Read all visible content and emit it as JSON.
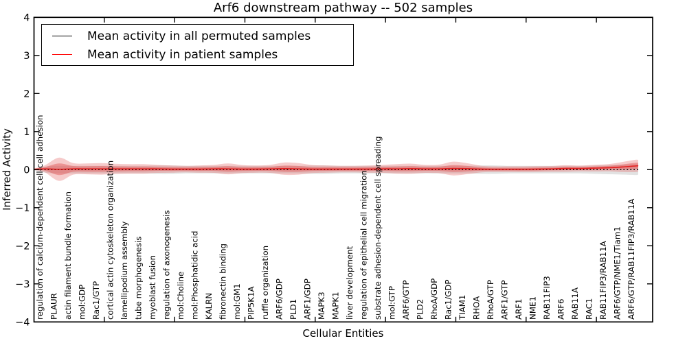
{
  "title": "Arf6 downstream pathway -- 502 samples",
  "axes": {
    "x_label": "Cellular Entities",
    "y_label": "Inferred Activity",
    "y_ticks": [
      "4",
      "3",
      "2",
      "1",
      "0",
      "−1",
      "−2",
      "−3",
      "−4"
    ],
    "y_min": -4,
    "y_max": 4
  },
  "legend": {
    "items": [
      {
        "label": "Mean activity in all permuted samples",
        "color": "#000000"
      },
      {
        "label": "Mean activity in patient samples",
        "color": "#ff0000"
      }
    ]
  },
  "chart_data": {
    "type": "line",
    "title": "Arf6 downstream pathway -- 502 samples",
    "xlabel": "Cellular Entities",
    "ylabel": "Inferred Activity",
    "ylim": [
      -4,
      4
    ],
    "grid": false,
    "legend_position": "upper left",
    "x_major_ticks": [
      5,
      10,
      15,
      20,
      25,
      30,
      35,
      40
    ],
    "categories": [
      "regulation of calcium-dependent cell-cell adhesion",
      "PLAUR",
      "actin filament bundle formation",
      "mol:GDP",
      "Rac1/GTP",
      "cortical actin cytoskeleton organization",
      "lamellipodium assembly",
      "tube morphogenesis",
      "myoblast fusion",
      "regulation of axonogenesis",
      "mol:Choline",
      "mol:Phosphatidic acid",
      "KALRN",
      "fibronectin binding",
      "mol:GM1",
      "PIP5K1A",
      "ruffle organization",
      "ARF6/GDP",
      "PLD1",
      "ARF1/GDP",
      "MAPK3",
      "MAPK1",
      "liver development",
      "regulation of epithelial cell migration",
      "substrate adhesion-dependent cell spreading",
      "mol:GTP",
      "ARF6/GTP",
      "PLD2",
      "RhoA/GDP",
      "Rac1/GDP",
      "TIAM1",
      "RHOA",
      "RhoA/GTP",
      "ARF1/GTP",
      "ARF1",
      "NME1",
      "RAB11FIP3",
      "ARF6",
      "RAB11A",
      "RAC1",
      "RAB11FIP3/RAB11A",
      "ARF6/GTP/NME1/Tiam1",
      "ARF6/GTP/RAB11FIP3/RAB11A"
    ],
    "series": [
      {
        "name": "Mean activity in all permuted samples",
        "color": "#000000",
        "line_style": "dotted",
        "band_color": "#969696",
        "mean": [
          0,
          0,
          0,
          0,
          0,
          0,
          0,
          0,
          0,
          0,
          0,
          0,
          0,
          0,
          0,
          0,
          0,
          0,
          0,
          0,
          0,
          0,
          0,
          0,
          0,
          0,
          0,
          0,
          0,
          0,
          0,
          0,
          0,
          0,
          0,
          0,
          0,
          0,
          0,
          0,
          0,
          0,
          0
        ],
        "std": [
          0.04,
          0.05,
          0.05,
          0.05,
          0.05,
          0.05,
          0.05,
          0.05,
          0.055,
          0.055,
          0.05,
          0.05,
          0.05,
          0.05,
          0.05,
          0.05,
          0.05,
          0.05,
          0.05,
          0.055,
          0.055,
          0.05,
          0.05,
          0.05,
          0.05,
          0.05,
          0.05,
          0.05,
          0.05,
          0.05,
          0.05,
          0.055,
          0.055,
          0.05,
          0.05,
          0.05,
          0.05,
          0.05,
          0.05,
          0.055,
          0.06,
          0.065,
          0.07
        ]
      },
      {
        "name": "Mean activity in patient samples",
        "color": "#e42222",
        "line_style": "solid",
        "band_color": "#e05252",
        "mean": [
          0.02,
          0.01,
          0.02,
          0.02,
          0.02,
          0.02,
          0.02,
          0.02,
          0.02,
          0.015,
          0.015,
          0.015,
          0.02,
          0.02,
          0.015,
          0.015,
          0.02,
          0.025,
          0.02,
          0.015,
          0.015,
          0.015,
          0.015,
          0.015,
          0.02,
          0.02,
          0.025,
          0.02,
          0.02,
          0.03,
          0.025,
          0.015,
          0.01,
          0.01,
          0.01,
          0.015,
          0.02,
          0.03,
          0.03,
          0.04,
          0.05,
          0.07,
          0.1
        ],
        "std": [
          0.045,
          0.145,
          0.072,
          0.068,
          0.072,
          0.063,
          0.059,
          0.059,
          0.05,
          0.045,
          0.041,
          0.045,
          0.05,
          0.068,
          0.05,
          0.045,
          0.05,
          0.077,
          0.072,
          0.05,
          0.045,
          0.041,
          0.041,
          0.045,
          0.05,
          0.059,
          0.063,
          0.05,
          0.054,
          0.086,
          0.068,
          0.041,
          0.036,
          0.036,
          0.036,
          0.036,
          0.036,
          0.041,
          0.036,
          0.041,
          0.045,
          0.063,
          0.077
        ]
      }
    ]
  }
}
